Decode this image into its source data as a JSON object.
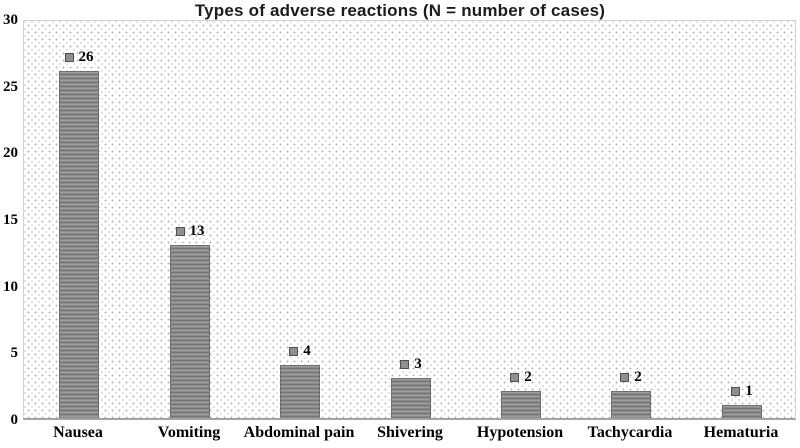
{
  "chart_data": {
    "type": "bar",
    "title": "Types of adverse reactions (N = number of cases)",
    "categories": [
      "Nausea",
      "Vomiting",
      "Abdominal pain",
      "Shivering",
      "Hypotension",
      "Tachycardia",
      "Hematuria"
    ],
    "values": [
      26,
      13,
      4,
      3,
      2,
      2,
      1
    ],
    "data_labels": [
      "26",
      "13",
      "4",
      "3",
      "2",
      "2",
      "1"
    ],
    "xlabel": "",
    "ylabel": "",
    "ylim": [
      0,
      30
    ],
    "yticks": [
      "0",
      "5",
      "10",
      "15",
      "20",
      "25",
      "30"
    ],
    "grid": false,
    "legend": "none",
    "colors": {
      "bar_fill": "#8a8a8a",
      "bar_border": "#6d6d6d",
      "marker_fill": "#8f8f8f",
      "marker_border": "#4f4f4f",
      "axis_line": "#a3a3a3",
      "plot_border": "#d2d2d2",
      "plot_dot": "#b5b5b5",
      "text": "#000000",
      "title_text": "#1c1c1c",
      "background": "#ffffff"
    }
  }
}
